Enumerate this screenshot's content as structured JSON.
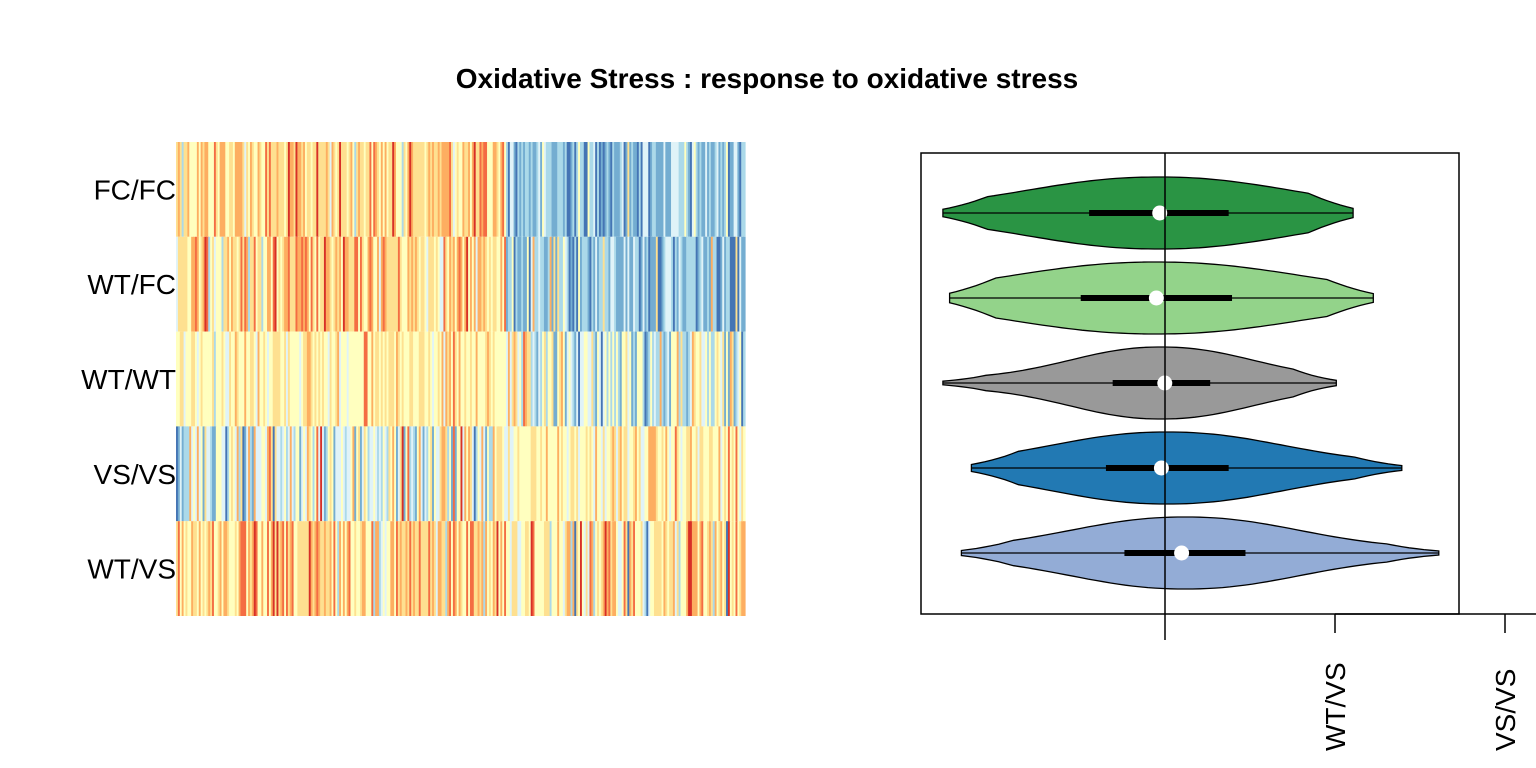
{
  "title": "Oxidative Stress : response to oxidative stress",
  "chart_data": [
    {
      "type": "heatmap",
      "rows": [
        "FC/FC",
        "WT/FC",
        "WT/WT",
        "VS/VS",
        "WT/VS"
      ],
      "row_profiles": {
        "FC/FC": {
          "left": "warm",
          "right": "cool"
        },
        "WT/FC": {
          "left": "warm",
          "right": "cool"
        },
        "WT/WT": {
          "left": "light-yellow",
          "right": "mixed-cool"
        },
        "VS/VS": {
          "left": "mixed",
          "right": "light-yellow"
        },
        "WT/VS": {
          "left": "warm",
          "right": "mixed-warm"
        }
      },
      "palette": [
        "#d73027",
        "#f46d43",
        "#fdae61",
        "#fee090",
        "#ffffbf",
        "#e0f3f8",
        "#abd9e9",
        "#74add1",
        "#4575b4"
      ],
      "column_count": 300,
      "left_block_fraction": 0.58
    },
    {
      "type": "violin",
      "xlim": [
        -1.45,
        1.75
      ],
      "reference_line": 0,
      "legend_labels": [
        "WT/VS",
        "VS/VS"
      ],
      "series": [
        {
          "label": "FC/FC",
          "color": "#2a9444",
          "min": -1.32,
          "q1": -0.45,
          "median": -0.03,
          "q3": 0.38,
          "max": 1.12
        },
        {
          "label": "WT/FC",
          "color": "#93d38a",
          "min": -1.28,
          "q1": -0.5,
          "median": -0.05,
          "q3": 0.4,
          "max": 1.24
        },
        {
          "label": "WT/WT",
          "color": "#999999",
          "min": -1.32,
          "q1": -0.31,
          "median": 0.0,
          "q3": 0.27,
          "max": 1.02
        },
        {
          "label": "VS/VS",
          "color": "#2279b3",
          "min": -1.15,
          "q1": -0.35,
          "median": -0.02,
          "q3": 0.38,
          "max": 1.41
        },
        {
          "label": "WT/VS",
          "color": "#93acd6",
          "min": -1.21,
          "q1": -0.24,
          "median": 0.1,
          "q3": 0.48,
          "max": 1.63
        }
      ]
    }
  ]
}
